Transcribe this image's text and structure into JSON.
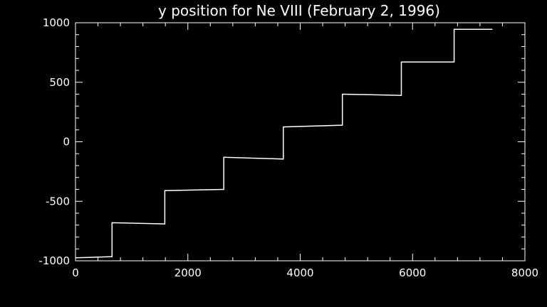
{
  "chart_data": {
    "type": "line",
    "title": "y position for Ne VIII (February 2, 1996)",
    "xlabel": "",
    "ylabel": "",
    "xlim": [
      0,
      8000
    ],
    "ylim": [
      -1000,
      1000
    ],
    "x_ticks": [
      {
        "value": 0,
        "label": "0"
      },
      {
        "value": 2000,
        "label": "2000"
      },
      {
        "value": 4000,
        "label": "4000"
      },
      {
        "value": 6000,
        "label": "6000"
      },
      {
        "value": 8000,
        "label": "8000"
      }
    ],
    "y_ticks": [
      {
        "value": 1000,
        "label": "1000"
      },
      {
        "value": 500,
        "label": "500"
      },
      {
        "value": 0,
        "label": "0"
      },
      {
        "value": -500,
        "label": "-500"
      },
      {
        "value": -1000,
        "label": "-1000"
      }
    ],
    "grid": false,
    "legend": "none",
    "colors": {
      "background": "#000000",
      "foreground": "#ffffff",
      "line": "#ffffff"
    },
    "series": [
      {
        "x": [
          0,
          650,
          650,
          1590,
          1590,
          2640,
          2640,
          3700,
          3700,
          4750,
          4750,
          5800,
          5800,
          6740,
          6740,
          7420
        ],
        "y": [
          -975,
          -965,
          -680,
          -690,
          -410,
          -400,
          -130,
          -145,
          125,
          140,
          400,
          390,
          670,
          670,
          945,
          945
        ]
      }
    ]
  }
}
